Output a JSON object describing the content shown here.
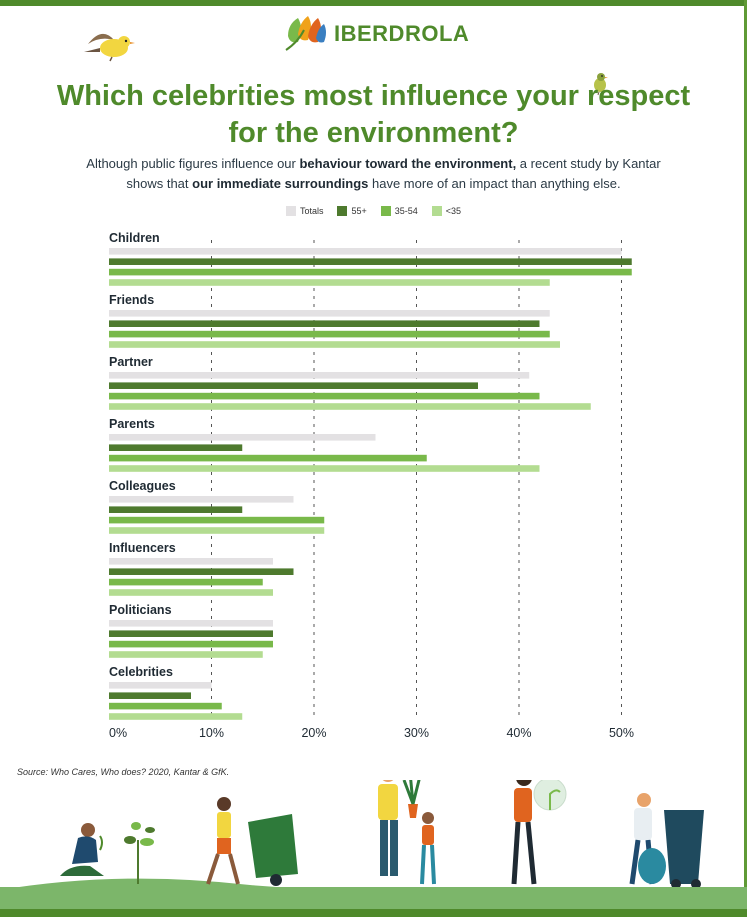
{
  "brand": {
    "name": "IBERDROLA"
  },
  "header": {
    "title_line1": "Which celebrities most influence your respect",
    "title_line2": "for the environment?",
    "subtitle_1": "Although public figures influence our ",
    "subtitle_bold1": "behaviour toward the environment,",
    "subtitle_2": " a recent study by Kantar",
    "subtitle_3": "shows that ",
    "subtitle_bold2": "our immediate surroundings",
    "subtitle_4": " have more of an impact than anything else."
  },
  "colors": {
    "brand_green": "#4f8a2b",
    "Totals": "#e3e1e3",
    "55+": "#4e7a2e",
    "35-54": "#79b94a",
    "<35": "#b3dc91"
  },
  "chart_data": {
    "type": "bar",
    "orientation": "horizontal",
    "categories": [
      "Children",
      "Friends",
      "Partner",
      "Parents",
      "Colleagues",
      "Influencers",
      "Politicians",
      "Celebrities"
    ],
    "series": [
      {
        "name": "Totals",
        "values": [
          50,
          43,
          41,
          26,
          18,
          16,
          16,
          10
        ]
      },
      {
        "name": "55+",
        "values": [
          51,
          42,
          36,
          13,
          13,
          18,
          16,
          8
        ]
      },
      {
        "name": "35-54",
        "values": [
          51,
          43,
          42,
          31,
          21,
          15,
          16,
          11
        ]
      },
      {
        "name": "<35",
        "values": [
          43,
          44,
          47,
          42,
          21,
          16,
          15,
          13
        ]
      }
    ],
    "xlim": [
      0,
      50
    ],
    "xticks": [
      "0%",
      "10%",
      "20%",
      "30%",
      "40%",
      "50%"
    ],
    "grid": "vertical dashed",
    "legend": "top-center"
  },
  "source": "Source: Who Cares, Who does? 2020, Kantar & GfK."
}
